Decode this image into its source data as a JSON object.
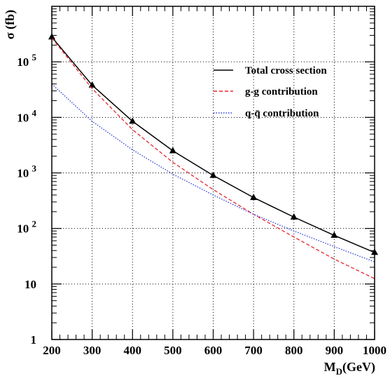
{
  "chart_data": {
    "type": "line",
    "title": "",
    "xlabel": "M_D(GeV)",
    "xlabel_main": "M",
    "xlabel_sub": "D",
    "xlabel_unit": "(GeV)",
    "ylabel": "σ (fb)",
    "xlim": [
      200,
      1000
    ],
    "ylim": [
      1,
      1000000
    ],
    "yscale": "log",
    "grid": true,
    "legend_position": "top-right",
    "x_ticks": [
      200,
      300,
      400,
      500,
      600,
      700,
      800,
      900,
      1000
    ],
    "x_tick_labels": [
      "200",
      "300",
      "400",
      "500",
      "600",
      "700",
      "800",
      "900",
      "1000"
    ],
    "y_ticks": [
      {
        "value": 1,
        "base": "1",
        "exp": ""
      },
      {
        "value": 10,
        "base": "10",
        "exp": ""
      },
      {
        "value": 100,
        "base": "10",
        "exp": "2"
      },
      {
        "value": 1000,
        "base": "10",
        "exp": "3"
      },
      {
        "value": 10000,
        "base": "10",
        "exp": "4"
      },
      {
        "value": 100000,
        "base": "10",
        "exp": "5"
      }
    ],
    "x": [
      200,
      300,
      400,
      500,
      600,
      700,
      800,
      900,
      1000
    ],
    "series": [
      {
        "name": "Total cross section",
        "color": "#000000",
        "style": "solid",
        "marker": "triangle",
        "values": [
          280000,
          38000,
          8500,
          2500,
          900,
          360,
          160,
          75,
          37
        ]
      },
      {
        "name": "g-g contribution",
        "color": "#e8262a",
        "style": "dashed",
        "marker": "none",
        "values": [
          270000,
          33000,
          6000,
          1550,
          500,
          180,
          70,
          28,
          12.5
        ]
      },
      {
        "name": "q-q̄ contribution",
        "color": "#2a3cd6",
        "style": "dotted",
        "marker": "none",
        "values": [
          40000,
          8500,
          2600,
          950,
          400,
          180,
          90,
          47,
          25
        ]
      }
    ]
  }
}
